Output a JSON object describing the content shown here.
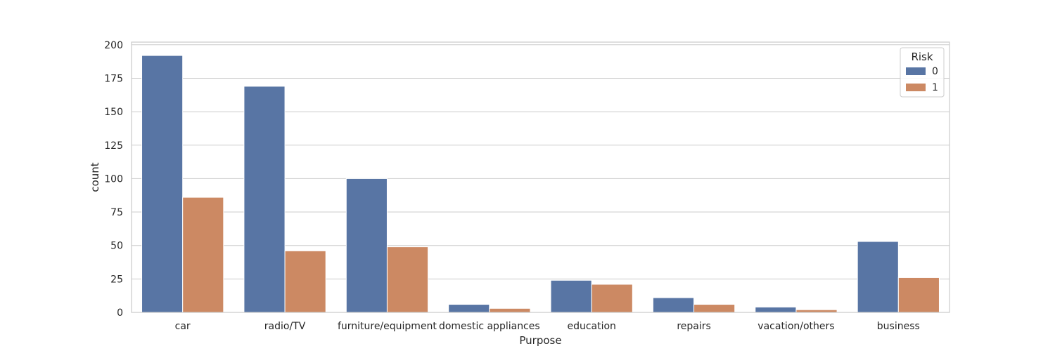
{
  "chart_data": {
    "type": "bar",
    "title": "",
    "xlabel": "Purpose",
    "ylabel": "count",
    "categories": [
      "car",
      "radio/TV",
      "furniture/equipment",
      "domestic appliances",
      "education",
      "repairs",
      "vacation/others",
      "business"
    ],
    "series": [
      {
        "name": "0",
        "color": "#5875a4",
        "values": [
          192,
          169,
          100,
          6,
          24,
          11,
          4,
          53
        ]
      },
      {
        "name": "1",
        "color": "#cc8963",
        "values": [
          86,
          46,
          49,
          3,
          21,
          6,
          2,
          26
        ]
      }
    ],
    "ylim": [
      0,
      202
    ],
    "yticks": [
      0,
      25,
      50,
      75,
      100,
      125,
      150,
      175,
      200
    ],
    "grid": true,
    "legend": {
      "title": "Risk",
      "placement": "top-right"
    }
  }
}
